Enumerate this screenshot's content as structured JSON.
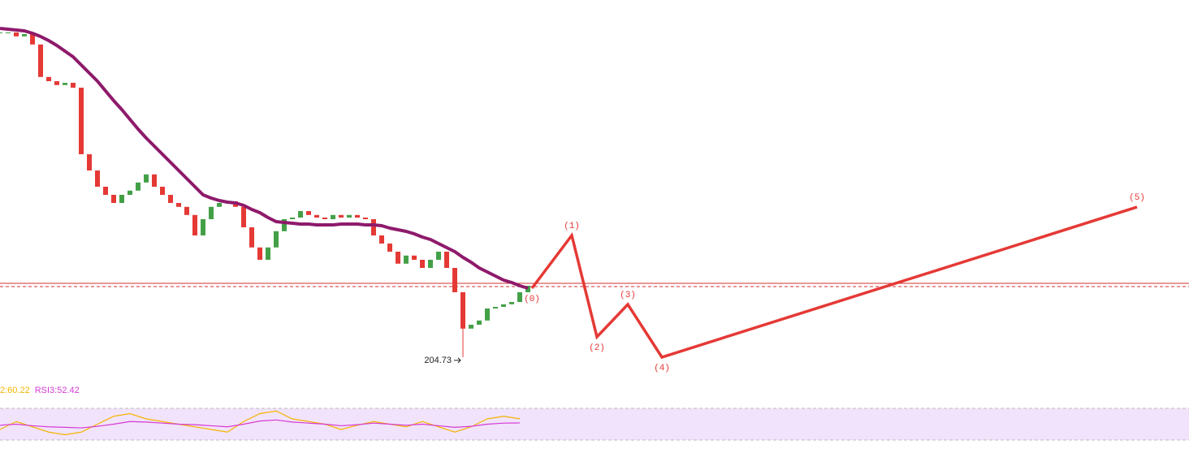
{
  "chart_data": {
    "type": "candlestick",
    "xlim": [
      0,
      146.4
    ],
    "ylim": [
      197.2,
      309.7
    ],
    "candle_colors": {
      "up": "#43a047",
      "down": "#e53935"
    },
    "closes": [
      304.7,
      304.7,
      303.5,
      304.2,
      301.0,
      291.0,
      289.7,
      288.5,
      289.2,
      287.7,
      267.2,
      262.2,
      257.2,
      254.7,
      252.2,
      254.7,
      256.0,
      258.5,
      261.0,
      257.2,
      254.7,
      252.2,
      251.0,
      248.5,
      242.2,
      247.2,
      251.0,
      252.2,
      252.7,
      251.0,
      244.7,
      238.5,
      234.7,
      238.5,
      243.5,
      247.2,
      247.7,
      249.7,
      248.5,
      247.7,
      247.2,
      248.5,
      247.7,
      248.5,
      247.7,
      247.2,
      242.2,
      239.7,
      237.2,
      233.5,
      236.0,
      234.7,
      232.2,
      234.7,
      237.2,
      232.2,
      224.7,
      213.5,
      214.7,
      216.0,
      219.7,
      220.2,
      221.0,
      221.7,
      224.7,
      226.7
    ],
    "ma": {
      "color": "#8e1a6b",
      "values": [
        305.95,
        305.7,
        305.45,
        305.2,
        304.45,
        303.45,
        302.2,
        300.7,
        298.95,
        297.2,
        294.7,
        292.2,
        289.7,
        286.7,
        283.7,
        280.95,
        277.95,
        274.95,
        272.2,
        269.7,
        267.2,
        264.7,
        262.2,
        259.7,
        257.2,
        254.7,
        253.7,
        252.95,
        252.45,
        252.2,
        251.45,
        250.2,
        249.2,
        247.7,
        246.45,
        246.2,
        245.95,
        245.7,
        245.7,
        245.45,
        245.45,
        245.45,
        245.7,
        245.7,
        245.7,
        245.45,
        245.45,
        245.2,
        244.45,
        243.95,
        243.45,
        242.7,
        241.7,
        240.95,
        239.7,
        238.45,
        237.2,
        235.45,
        233.95,
        232.2,
        230.95,
        229.7,
        228.45,
        227.7,
        226.7,
        225.95
      ]
    },
    "levels": [
      {
        "value": 227.45,
        "style": "solid"
      },
      {
        "value": 226.45,
        "style": "dashed"
      }
    ],
    "level_color": "#d32f2f",
    "low": {
      "index": 57,
      "value": 204.73
    },
    "wave": {
      "color": "#e53935",
      "x": [
        65.5,
        70.4,
        73.5,
        77.3,
        81.5,
        140
      ],
      "values": [
        225.95,
        242.2,
        210.95,
        220.95,
        204.7,
        250.95
      ],
      "labels": [
        "(0)",
        "(1)",
        "(2)",
        "(3)",
        "(4)",
        "(5)"
      ]
    },
    "rsi": {
      "ylim": [
        0,
        100
      ],
      "band": [
        20,
        80
      ],
      "band_color": "#f1e3fb",
      "series": [
        {
          "name": "2:60.22",
          "color": "#f4b400",
          "values": [
            40,
            55,
            45,
            35,
            30,
            35,
            50,
            65,
            70,
            60,
            55,
            50,
            45,
            40,
            35,
            55,
            70,
            75,
            60,
            55,
            50,
            40,
            48,
            55,
            50,
            45,
            55,
            45,
            35,
            45,
            60,
            65,
            60.22
          ]
        },
        {
          "name": "RSI3:52.42",
          "color": "#d63ad6",
          "values": [
            48,
            50,
            47,
            45,
            44,
            43,
            46,
            50,
            55,
            54,
            52,
            50,
            49,
            47,
            45,
            50,
            56,
            58,
            54,
            52,
            50,
            47,
            49,
            52,
            50,
            48,
            50,
            47,
            44,
            46,
            50,
            52,
            52.42
          ]
        }
      ]
    }
  }
}
